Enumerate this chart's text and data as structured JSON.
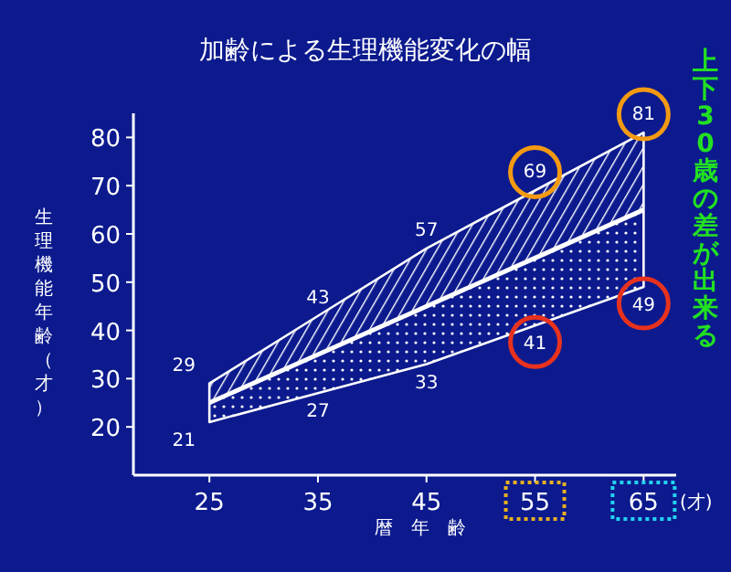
{
  "chart_data": {
    "type": "line",
    "title": "加齢による生理機能変化の幅",
    "xlabel": "暦　年　齢",
    "ylabel": "生理機能年齢（才）",
    "annotations": [
      "上下30歳の差が出来る",
      "(才)",
      {
        "text": "29",
        "x": 25,
        "y": 29
      },
      {
        "text": "43",
        "x": 35,
        "y": 43
      },
      {
        "text": "57",
        "x": 45,
        "y": 57
      },
      {
        "text": "69",
        "x": 55,
        "y": 69
      },
      {
        "text": "81",
        "x": 65,
        "y": 81
      },
      {
        "text": "21",
        "x": 25,
        "y": 21
      },
      {
        "text": "27",
        "x": 35,
        "y": 27
      },
      {
        "text": "33",
        "x": 45,
        "y": 33
      },
      {
        "text": "41",
        "x": 55,
        "y": 41
      },
      {
        "text": "49",
        "x": 65,
        "y": 49
      }
    ],
    "x": [
      25,
      35,
      45,
      55,
      65
    ],
    "series": [
      {
        "color": "#ffffff",
        "values": [
          25,
          35,
          45,
          55,
          65
        ],
        "lower": [
          21,
          27,
          33,
          41,
          49
        ],
        "upper": [
          29,
          43,
          57,
          69,
          81
        ]
      }
    ],
    "xlim": [
      18,
      68
    ],
    "ylim": [
      10,
      85
    ],
    "xticks": [
      25,
      35,
      45,
      55,
      65
    ],
    "yticks": [
      20,
      30,
      40,
      50,
      60,
      70,
      80
    ]
  }
}
